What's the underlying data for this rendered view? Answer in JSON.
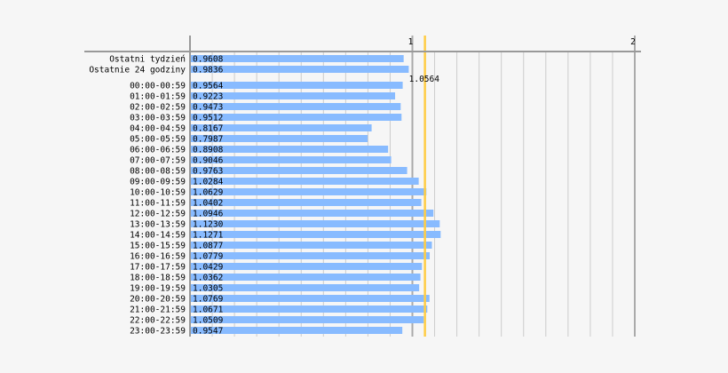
{
  "chart_data": {
    "type": "bar",
    "orientation": "horizontal",
    "grid": true,
    "xlim": [
      0,
      2
    ],
    "x_ticks": [
      {
        "value": 1,
        "label": "1"
      },
      {
        "value": 2,
        "label": "2"
      }
    ],
    "reference_line": {
      "value": 1.0564,
      "label": "1.0564",
      "color": "#ffcc44"
    },
    "bar_color": "#88bbff",
    "grid_color": "#cccccc",
    "major_grid_color": "#aaaaaa",
    "categories": [
      "Ostatni tydzień",
      "Ostatnie 24 godziny",
      "00:00-00:59",
      "01:00-01:59",
      "02:00-02:59",
      "03:00-03:59",
      "04:00-04:59",
      "05:00-05:59",
      "06:00-06:59",
      "07:00-07:59",
      "08:00-08:59",
      "09:00-09:59",
      "10:00-10:59",
      "11:00-11:59",
      "12:00-12:59",
      "13:00-13:59",
      "14:00-14:59",
      "15:00-15:59",
      "16:00-16:59",
      "17:00-17:59",
      "18:00-18:59",
      "19:00-19:59",
      "20:00-20:59",
      "21:00-21:59",
      "22:00-22:59",
      "23:00-23:59"
    ],
    "values": [
      0.9608,
      0.9836,
      0.9564,
      0.9223,
      0.9473,
      0.9512,
      0.8167,
      0.7987,
      0.8908,
      0.9046,
      0.9763,
      1.0284,
      1.0629,
      1.0402,
      1.0946,
      1.123,
      1.1271,
      1.0877,
      1.0779,
      1.0429,
      1.0362,
      1.0305,
      1.0769,
      1.0671,
      1.0509,
      0.9547
    ],
    "value_labels": [
      "0.9608",
      "0.9836",
      "0.9564",
      "0.9223",
      "0.9473",
      "0.9512",
      "0.8167",
      "0.7987",
      "0.8908",
      "0.9046",
      "0.9763",
      "1.0284",
      "1.0629",
      "1.0402",
      "1.0946",
      "1.1230",
      "1.1271",
      "1.0877",
      "1.0779",
      "1.0429",
      "1.0362",
      "1.0305",
      "1.0769",
      "1.0671",
      "1.0509",
      "0.9547"
    ]
  }
}
